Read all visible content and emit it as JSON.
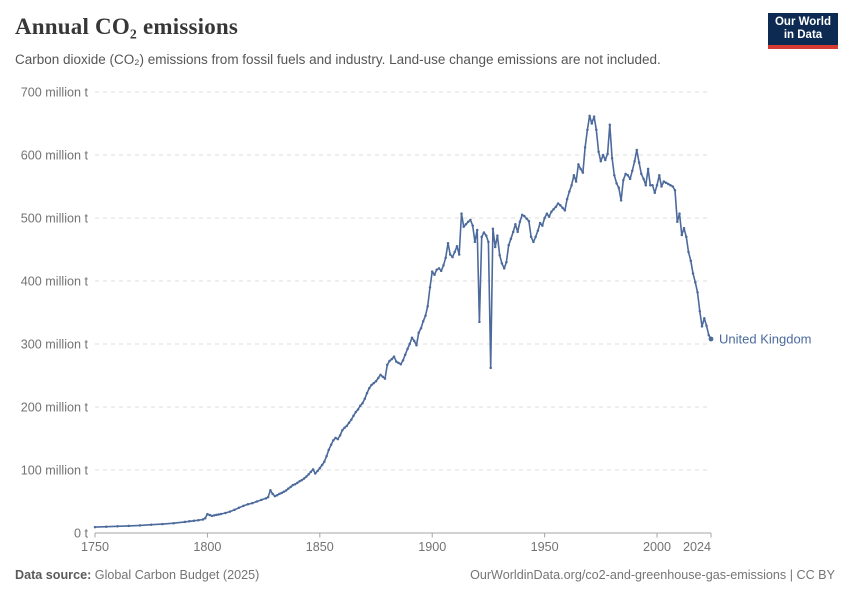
{
  "header": {
    "title": "Annual CO₂ emissions",
    "subtitle": "Carbon dioxide (CO₂) emissions from fossil fuels and industry. Land-use change emissions are not included."
  },
  "logo": {
    "line1": "Our World",
    "line2": "in Data"
  },
  "chart_data": {
    "type": "line",
    "title": "Annual CO₂ emissions",
    "entity": "United Kingdom",
    "unit": "million t",
    "xlim": [
      1750,
      2024
    ],
    "ylim": [
      0,
      700
    ],
    "x_ticks": [
      1750,
      1800,
      1850,
      1900,
      1950,
      2000,
      2024
    ],
    "y_ticks": [
      0,
      100,
      200,
      300,
      400,
      500,
      600,
      700
    ],
    "y_tick_labels": [
      "0 t",
      "100 million t",
      "200 million t",
      "300 million t",
      "400 million t",
      "500 million t",
      "600 million t",
      "700 million t"
    ],
    "grid": "horizontal-dashed",
    "legend_position": "end-of-line",
    "points": [
      [
        1750,
        9.4
      ],
      [
        1755,
        10
      ],
      [
        1760,
        10.7
      ],
      [
        1765,
        11.3
      ],
      [
        1770,
        12.1
      ],
      [
        1775,
        13.1
      ],
      [
        1780,
        14.2
      ],
      [
        1785,
        15.6
      ],
      [
        1790,
        17.6
      ],
      [
        1792,
        18.5
      ],
      [
        1794,
        19.4
      ],
      [
        1796,
        20.3
      ],
      [
        1798,
        21.4
      ],
      [
        1799,
        23.5
      ],
      [
        1800,
        30
      ],
      [
        1801,
        28.5
      ],
      [
        1802,
        27.2
      ],
      [
        1803,
        28
      ],
      [
        1804,
        28.7
      ],
      [
        1805,
        29.3
      ],
      [
        1806,
        30.2
      ],
      [
        1808,
        31.8
      ],
      [
        1810,
        34
      ],
      [
        1812,
        36.6
      ],
      [
        1814,
        40
      ],
      [
        1816,
        43
      ],
      [
        1818,
        45.5
      ],
      [
        1820,
        47.5
      ],
      [
        1822,
        50
      ],
      [
        1824,
        52.5
      ],
      [
        1826,
        55
      ],
      [
        1827,
        57
      ],
      [
        1828,
        68
      ],
      [
        1829,
        62
      ],
      [
        1830,
        58.5
      ],
      [
        1831,
        60
      ],
      [
        1832,
        62
      ],
      [
        1833,
        63.5
      ],
      [
        1834,
        65.5
      ],
      [
        1835,
        67.5
      ],
      [
        1836,
        70.5
      ],
      [
        1837,
        73
      ],
      [
        1838,
        76
      ],
      [
        1839,
        77.5
      ],
      [
        1840,
        79.5
      ],
      [
        1841,
        82
      ],
      [
        1842,
        84
      ],
      [
        1843,
        86.5
      ],
      [
        1844,
        89.5
      ],
      [
        1845,
        93
      ],
      [
        1846,
        97
      ],
      [
        1847,
        101
      ],
      [
        1848,
        94.5
      ],
      [
        1849,
        98.5
      ],
      [
        1850,
        103
      ],
      [
        1851,
        108
      ],
      [
        1852,
        113
      ],
      [
        1853,
        122
      ],
      [
        1854,
        132
      ],
      [
        1855,
        140
      ],
      [
        1856,
        147
      ],
      [
        1857,
        151
      ],
      [
        1858,
        149
      ],
      [
        1859,
        155
      ],
      [
        1860,
        163
      ],
      [
        1861,
        167
      ],
      [
        1862,
        170
      ],
      [
        1863,
        175
      ],
      [
        1864,
        180
      ],
      [
        1865,
        186
      ],
      [
        1866,
        192
      ],
      [
        1867,
        196
      ],
      [
        1868,
        202
      ],
      [
        1869,
        206
      ],
      [
        1870,
        213
      ],
      [
        1871,
        222
      ],
      [
        1872,
        230
      ],
      [
        1873,
        235
      ],
      [
        1874,
        238
      ],
      [
        1875,
        241
      ],
      [
        1876,
        246
      ],
      [
        1877,
        251
      ],
      [
        1878,
        248
      ],
      [
        1879,
        245
      ],
      [
        1880,
        267
      ],
      [
        1881,
        273
      ],
      [
        1882,
        276
      ],
      [
        1883,
        280
      ],
      [
        1884,
        272
      ],
      [
        1885,
        270
      ],
      [
        1886,
        268
      ],
      [
        1887,
        274
      ],
      [
        1888,
        283
      ],
      [
        1889,
        292
      ],
      [
        1890,
        300
      ],
      [
        1891,
        310
      ],
      [
        1892,
        305
      ],
      [
        1893,
        298
      ],
      [
        1894,
        318
      ],
      [
        1895,
        325
      ],
      [
        1896,
        336
      ],
      [
        1897,
        345
      ],
      [
        1898,
        360
      ],
      [
        1899,
        390
      ],
      [
        1900,
        415
      ],
      [
        1901,
        410
      ],
      [
        1902,
        418
      ],
      [
        1903,
        420
      ],
      [
        1904,
        416
      ],
      [
        1905,
        425
      ],
      [
        1906,
        437
      ],
      [
        1907,
        460
      ],
      [
        1908,
        442
      ],
      [
        1909,
        438
      ],
      [
        1910,
        446
      ],
      [
        1911,
        455
      ],
      [
        1912,
        442
      ],
      [
        1913,
        507
      ],
      [
        1914,
        486
      ],
      [
        1915,
        490
      ],
      [
        1916,
        494
      ],
      [
        1917,
        497
      ],
      [
        1918,
        488
      ],
      [
        1919,
        462
      ],
      [
        1920,
        481
      ],
      [
        1921,
        335
      ],
      [
        1922,
        470
      ],
      [
        1923,
        477
      ],
      [
        1924,
        472
      ],
      [
        1925,
        462
      ],
      [
        1926,
        262
      ],
      [
        1927,
        483
      ],
      [
        1928,
        454
      ],
      [
        1929,
        472
      ],
      [
        1930,
        441
      ],
      [
        1931,
        428
      ],
      [
        1932,
        420
      ],
      [
        1933,
        430
      ],
      [
        1934,
        457
      ],
      [
        1935,
        467
      ],
      [
        1936,
        478
      ],
      [
        1937,
        490
      ],
      [
        1938,
        478
      ],
      [
        1939,
        494
      ],
      [
        1940,
        505
      ],
      [
        1941,
        503
      ],
      [
        1942,
        499
      ],
      [
        1943,
        495
      ],
      [
        1944,
        470
      ],
      [
        1945,
        462
      ],
      [
        1946,
        470
      ],
      [
        1947,
        480
      ],
      [
        1948,
        492
      ],
      [
        1949,
        488
      ],
      [
        1950,
        500
      ],
      [
        1951,
        507
      ],
      [
        1952,
        502
      ],
      [
        1953,
        510
      ],
      [
        1954,
        514
      ],
      [
        1955,
        518
      ],
      [
        1956,
        523
      ],
      [
        1957,
        520
      ],
      [
        1958,
        516
      ],
      [
        1959,
        512
      ],
      [
        1960,
        530
      ],
      [
        1961,
        542
      ],
      [
        1962,
        552
      ],
      [
        1963,
        568
      ],
      [
        1964,
        558
      ],
      [
        1965,
        585
      ],
      [
        1966,
        578
      ],
      [
        1967,
        572
      ],
      [
        1968,
        612
      ],
      [
        1969,
        640
      ],
      [
        1970,
        662
      ],
      [
        1971,
        650
      ],
      [
        1972,
        661
      ],
      [
        1973,
        640
      ],
      [
        1974,
        605
      ],
      [
        1975,
        590
      ],
      [
        1976,
        600
      ],
      [
        1977,
        592
      ],
      [
        1978,
        602
      ],
      [
        1979,
        648
      ],
      [
        1980,
        595
      ],
      [
        1981,
        568
      ],
      [
        1982,
        555
      ],
      [
        1983,
        548
      ],
      [
        1984,
        528
      ],
      [
        1985,
        560
      ],
      [
        1986,
        570
      ],
      [
        1987,
        568
      ],
      [
        1988,
        562
      ],
      [
        1989,
        575
      ],
      [
        1990,
        590
      ],
      [
        1991,
        608
      ],
      [
        1992,
        588
      ],
      [
        1993,
        570
      ],
      [
        1994,
        562
      ],
      [
        1995,
        552
      ],
      [
        1996,
        578
      ],
      [
        1997,
        552
      ],
      [
        1998,
        552
      ],
      [
        1999,
        540
      ],
      [
        2000,
        552
      ],
      [
        2001,
        568
      ],
      [
        2002,
        550
      ],
      [
        2003,
        558
      ],
      [
        2004,
        556
      ],
      [
        2005,
        554
      ],
      [
        2006,
        552
      ],
      [
        2007,
        550
      ],
      [
        2008,
        544
      ],
      [
        2009,
        494
      ],
      [
        2010,
        507
      ],
      [
        2011,
        473
      ],
      [
        2012,
        484
      ],
      [
        2013,
        470
      ],
      [
        2014,
        446
      ],
      [
        2015,
        432
      ],
      [
        2016,
        412
      ],
      [
        2017,
        398
      ],
      [
        2018,
        382
      ],
      [
        2019,
        352
      ],
      [
        2020,
        328
      ],
      [
        2021,
        341
      ],
      [
        2022,
        329
      ],
      [
        2023,
        314
      ],
      [
        2024,
        308
      ]
    ]
  },
  "entity_label": "United Kingdom",
  "footer": {
    "source_label": "Data source:",
    "source_value": " Global Carbon Budget (2025)",
    "rights": "OurWorldinData.org/co2-and-greenhouse-gas-emissions | CC BY"
  },
  "colors": {
    "line": "#4C6A9C",
    "entity_label": "#4C6A9C",
    "grid": "#dcdcdc",
    "axis": "#a5a5a5",
    "axis_text": "#737373",
    "logo_bg": "#0d2a52",
    "logo_red": "#d73c34"
  }
}
